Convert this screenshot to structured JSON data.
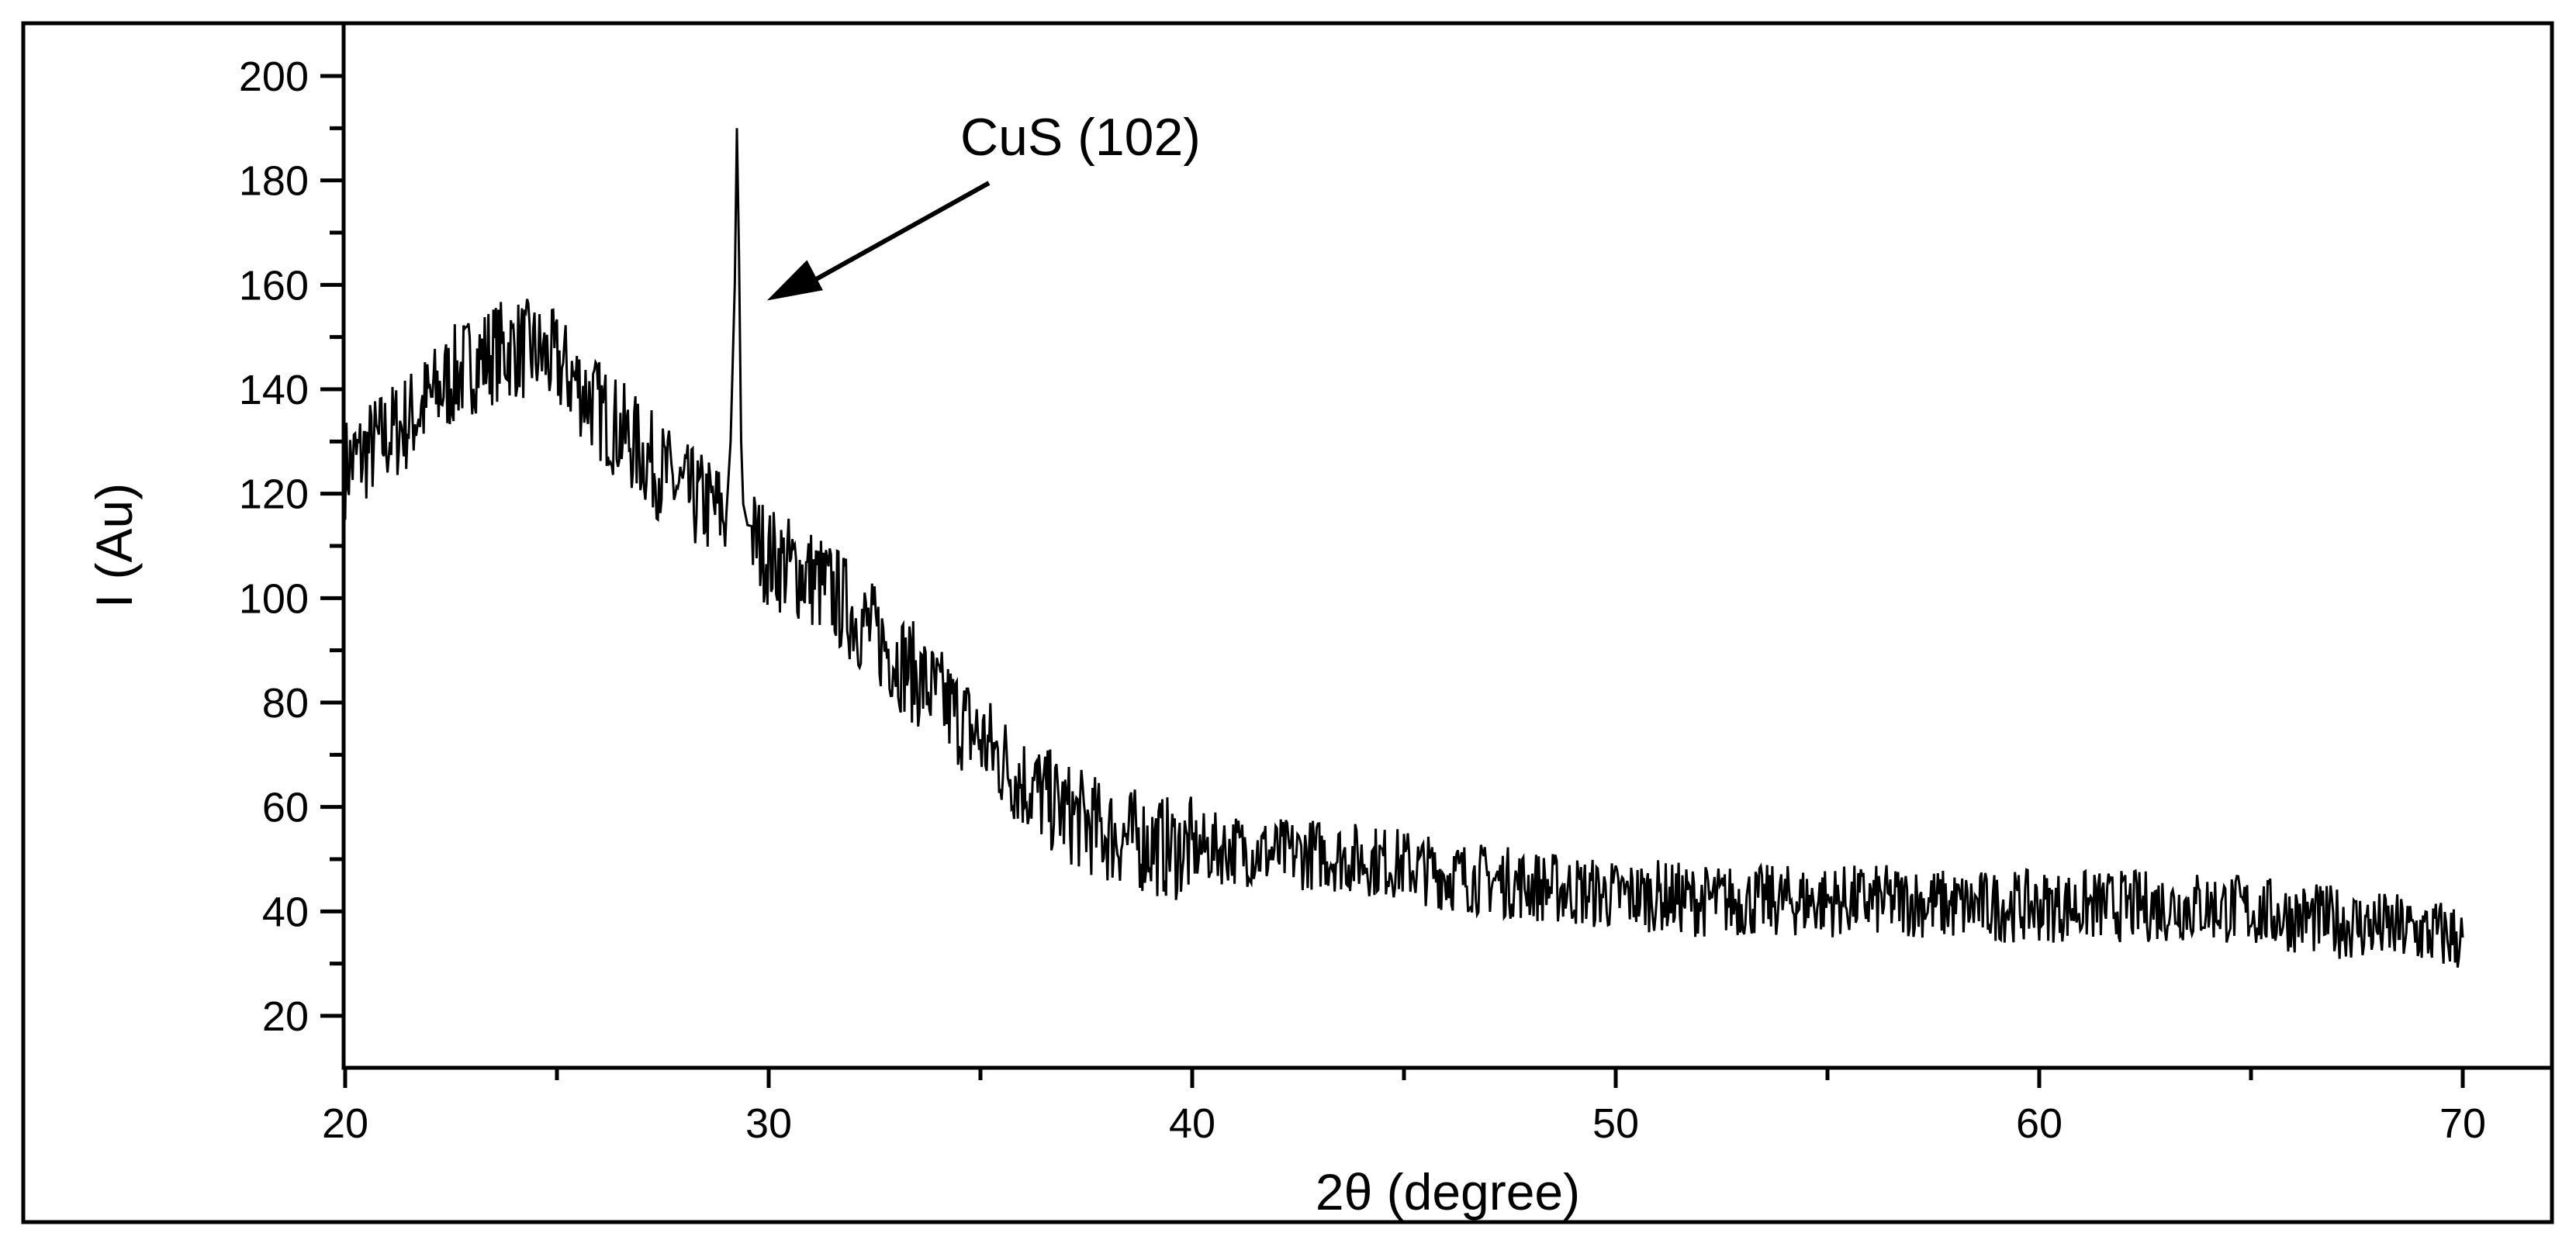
{
  "chart_data": {
    "type": "line",
    "xlabel": "2θ (degree)",
    "ylabel": "I (Au)",
    "xlim": [
      20,
      72
    ],
    "ylim": [
      10,
      210
    ],
    "x_ticks": [
      20,
      30,
      40,
      50,
      60,
      70
    ],
    "y_ticks": [
      20,
      40,
      60,
      80,
      100,
      120,
      140,
      160,
      180,
      200
    ],
    "grid": false,
    "series": [
      {
        "color": "#000000",
        "x": [
          20.0,
          20.5,
          21.0,
          21.5,
          22.0,
          22.5,
          23.0,
          23.5,
          24.0,
          24.5,
          25.0,
          25.5,
          26.0,
          26.5,
          27.0,
          27.5,
          28.0,
          28.5,
          29.0,
          29.1,
          29.2,
          29.25,
          29.3,
          29.35,
          29.4,
          29.5,
          29.6,
          29.8,
          30.0,
          30.5,
          31.0,
          31.5,
          32.0,
          32.5,
          33.0,
          33.5,
          34.0,
          34.5,
          35.0,
          35.5,
          36.0,
          36.5,
          37.0,
          37.5,
          38.0,
          38.5,
          39.0,
          39.5,
          40.0,
          41.0,
          42.0,
          43.0,
          44.0,
          45.0,
          46.0,
          47.0,
          48.0,
          49.0,
          50.0,
          51.0,
          52.0,
          53.0,
          54.0,
          55.0,
          56.0,
          57.0,
          58.0,
          59.0,
          60.0,
          61.0,
          62.0,
          63.0,
          64.0,
          65.0,
          66.0,
          67.0,
          68.0,
          69.0,
          70.0
        ],
        "y": [
          125,
          128,
          131,
          134,
          138,
          142,
          145,
          147,
          148,
          147,
          145,
          141,
          136,
          132,
          128,
          124,
          120,
          118,
          116,
          130,
          160,
          190,
          165,
          130,
          118,
          114,
          112,
          110,
          108,
          106,
          104,
          101,
          97,
          93,
          89,
          85,
          81,
          77,
          73,
          69,
          65,
          62,
          59,
          57,
          55,
          54,
          53,
          52,
          52,
          52,
          51,
          51,
          50,
          49,
          47,
          46,
          45,
          44,
          43,
          43,
          42,
          42,
          42,
          42,
          42,
          42,
          41,
          41,
          41,
          41,
          41,
          41,
          41,
          40,
          39,
          38,
          37,
          36,
          35
        ]
      }
    ],
    "annotations": [
      {
        "text": "CuS (102)",
        "x": 29.3,
        "y": 190
      }
    ]
  }
}
